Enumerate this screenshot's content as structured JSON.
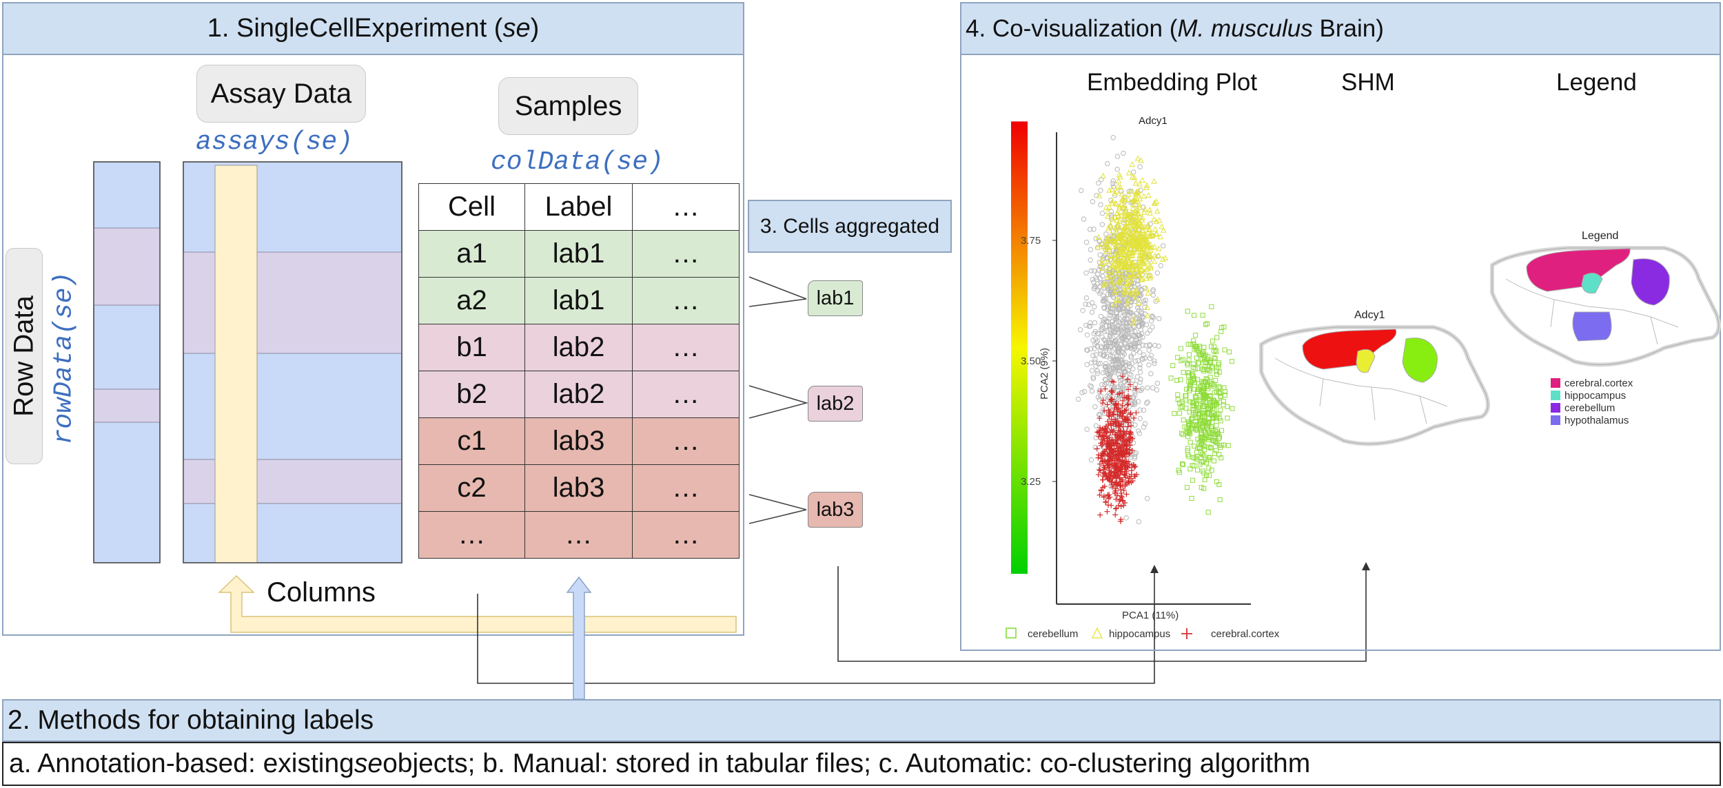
{
  "panel1": {
    "title_prefix": "1. SingleCellExperiment (",
    "title_italic": "se",
    "title_suffix": ")",
    "assay_label": "Assay Data",
    "assays_code": "assays(se)",
    "samples_label": "Samples",
    "coldata_code": "colData(se)",
    "rowdata_label": "Row Data",
    "rowdata_code": "rowData(se)",
    "columns_label": "Columns",
    "table": {
      "headers": [
        "Cell",
        "Label",
        "…"
      ],
      "rows": [
        {
          "cell": "a1",
          "label": "lab1",
          "more": "…",
          "color": "#d9ead3"
        },
        {
          "cell": "a2",
          "label": "lab1",
          "more": "…",
          "color": "#d9ead3"
        },
        {
          "cell": "b1",
          "label": "lab2",
          "more": "…",
          "color": "#ead1dc"
        },
        {
          "cell": "b2",
          "label": "lab2",
          "more": "…",
          "color": "#ead1dc"
        },
        {
          "cell": "c1",
          "label": "lab3",
          "more": "…",
          "color": "#e6b8af"
        },
        {
          "cell": "c2",
          "label": "lab3",
          "more": "…",
          "color": "#e6b8af"
        },
        {
          "cell": "…",
          "label": "…",
          "more": "…",
          "color": "#e6b8af"
        }
      ]
    }
  },
  "panel2": {
    "title": "2. Methods for obtaining labels",
    "methods_a": "a. Annotation-based: existing ",
    "methods_italic": "se",
    "methods_rest": " objects; b. Manual: stored in tabular files; c. Automatic: co-clustering algorithm"
  },
  "panel3": {
    "title": "3. Cells aggregated",
    "tags": [
      {
        "label": "lab1",
        "color": "#d9ead3"
      },
      {
        "label": "lab2",
        "color": "#ead1dc"
      },
      {
        "label": "lab3",
        "color": "#e6b8af"
      }
    ]
  },
  "panel4": {
    "title_prefix": "4. Co-visualization (",
    "title_italic": "M. musculus",
    "title_suffix": " Brain)",
    "embedding_title": "Embedding Plot",
    "shm_title": "SHM",
    "legend_title": "Legend",
    "plot": {
      "gene": "Adcy1",
      "xlabel": "PCA1 (11%)",
      "ylabel": "PCA2 (9%)",
      "yticks": [
        "3.75",
        "3.50",
        "3.25"
      ],
      "legend": [
        {
          "name": "cerebellum",
          "color": "#7ddc2a"
        },
        {
          "name": "hippocampus",
          "color": "#e8e84a"
        },
        {
          "name": "cerebral.cortex",
          "color": "#d43030"
        }
      ]
    },
    "shm": {
      "gene": "Adcy1"
    },
    "legend_panel": {
      "title": "Legend",
      "items": [
        {
          "name": "cerebral.cortex",
          "color": "#e0207f"
        },
        {
          "name": "hippocampus",
          "color": "#5ee0c8"
        },
        {
          "name": "cerebellum",
          "color": "#8a2be2"
        },
        {
          "name": "hypothalamus",
          "color": "#7b6cf0"
        }
      ]
    }
  }
}
